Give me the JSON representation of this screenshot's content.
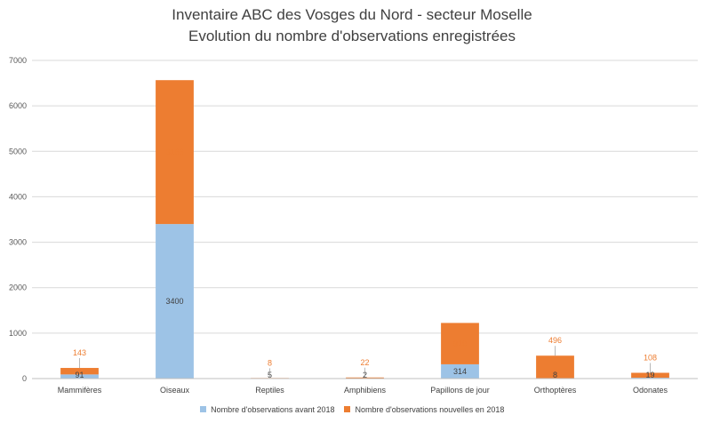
{
  "colors": {
    "avant": "#9DC3E6",
    "nouvelles": "#ED7D31",
    "grid": "#D9D9D9",
    "text": "#595959"
  },
  "chart_data": {
    "type": "bar",
    "stacked": true,
    "title": "Inventaire ABC des Vosges du Nord - secteur Moselle",
    "subtitle": "Evolution du nombre d'observations enregistrées",
    "categories": [
      "Mammifères",
      "Oiseaux",
      "Reptiles",
      "Amphibiens",
      "Papillons de jour",
      "Orthoptères",
      "Odonates"
    ],
    "series": [
      {
        "name": "Nombre d'observations avant 2018",
        "values": [
          91,
          3400,
          5,
          2,
          314,
          8,
          19
        ]
      },
      {
        "name": "Nombre d'observations nouvelles en 2018",
        "values": [
          143,
          3166,
          8,
          22,
          910,
          496,
          108
        ]
      }
    ],
    "yticks": [
      0,
      1000,
      2000,
      3000,
      4000,
      5000,
      6000,
      7000
    ],
    "ylim": [
      0,
      7000
    ],
    "grid": true,
    "legend_position": "bottom"
  }
}
